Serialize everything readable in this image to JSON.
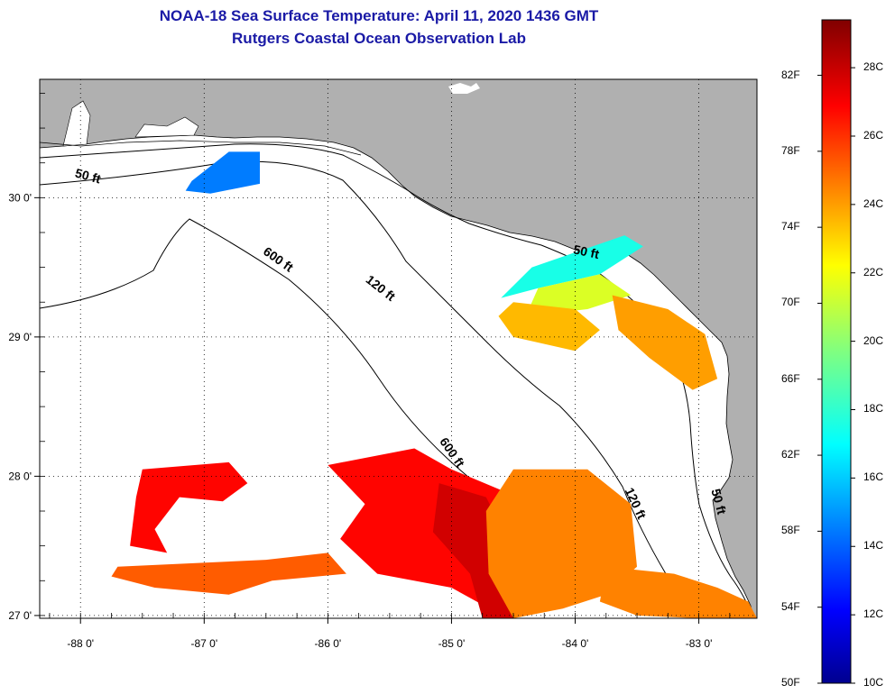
{
  "title": {
    "line1": "NOAA-18 Sea Surface Temperature:  April 11, 2020 1436 GMT",
    "line2": "Rutgers Coastal Ocean Observation Lab"
  },
  "map": {
    "lon_range": [
      -88.33,
      -82.53
    ],
    "lat_range": [
      26.98,
      30.85
    ],
    "lon_ticks": [
      {
        "value": -88,
        "label": "-88 0'"
      },
      {
        "value": -87,
        "label": "-87 0'"
      },
      {
        "value": -86,
        "label": "-86 0'"
      },
      {
        "value": -85,
        "label": "-85 0'"
      },
      {
        "value": -84,
        "label": "-84 0'"
      },
      {
        "value": -83,
        "label": "-83 0'"
      }
    ],
    "lat_ticks": [
      {
        "value": 30,
        "label": "30 0'"
      },
      {
        "value": 29,
        "label": "29 0'"
      },
      {
        "value": 28,
        "label": "28 0'"
      },
      {
        "value": 27,
        "label": "27 0'"
      }
    ],
    "contour_labels": [
      {
        "text": "50 ft",
        "lon": -88.05,
        "lat": 30.15,
        "rot": 15
      },
      {
        "text": "600 ft",
        "lon": -86.53,
        "lat": 29.6,
        "rot": 35
      },
      {
        "text": "120 ft",
        "lon": -85.7,
        "lat": 29.4,
        "rot": 38
      },
      {
        "text": "50 ft",
        "lon": -84.02,
        "lat": 29.6,
        "rot": 12
      },
      {
        "text": "600 ft",
        "lon": -85.1,
        "lat": 28.25,
        "rot": 55
      },
      {
        "text": "120 ft",
        "lon": -83.6,
        "lat": 27.9,
        "rot": 65
      },
      {
        "text": "50 ft",
        "lon": -82.9,
        "lat": 27.9,
        "rot": 75
      }
    ],
    "colors": {
      "land": "#b0b0b0",
      "water": "#ffffff",
      "grid": "#000000"
    }
  },
  "colorbar": {
    "min_c": 10,
    "max_c": 29.4,
    "celsius_labels": [
      {
        "value": 28,
        "label": "28C"
      },
      {
        "value": 26,
        "label": "26C"
      },
      {
        "value": 24,
        "label": "24C"
      },
      {
        "value": 22,
        "label": "22C"
      },
      {
        "value": 20,
        "label": "20C"
      },
      {
        "value": 18,
        "label": "18C"
      },
      {
        "value": 16,
        "label": "16C"
      },
      {
        "value": 14,
        "label": "14C"
      },
      {
        "value": 12,
        "label": "12C"
      },
      {
        "value": 10,
        "label": "10C"
      }
    ],
    "fahrenheit_labels": [
      {
        "value": 82,
        "label": "82F"
      },
      {
        "value": 78,
        "label": "78F"
      },
      {
        "value": 74,
        "label": "74F"
      },
      {
        "value": 70,
        "label": "70F"
      },
      {
        "value": 66,
        "label": "66F"
      },
      {
        "value": 62,
        "label": "62F"
      },
      {
        "value": 58,
        "label": "58F"
      },
      {
        "value": 54,
        "label": "54F"
      },
      {
        "value": 50,
        "label": "50F"
      }
    ]
  },
  "sst_patches": [
    {
      "name": "pensacola-cold-patch",
      "temp_c": 14.5,
      "pts": [
        [
          -86.8,
          30.33
        ],
        [
          -86.55,
          30.33
        ],
        [
          -86.55,
          30.1
        ],
        [
          -86.95,
          30.03
        ],
        [
          -87.15,
          30.05
        ],
        [
          -87.1,
          30.12
        ]
      ]
    },
    {
      "name": "apalachee-cyan-band",
      "temp_c": 17.5,
      "pts": [
        [
          -84.35,
          29.5
        ],
        [
          -83.6,
          29.73
        ],
        [
          -83.45,
          29.65
        ],
        [
          -83.8,
          29.45
        ],
        [
          -84.3,
          29.35
        ],
        [
          -84.6,
          29.28
        ]
      ]
    },
    {
      "name": "apalachee-yellow",
      "temp_c": 21.5,
      "pts": [
        [
          -84.3,
          29.35
        ],
        [
          -83.8,
          29.45
        ],
        [
          -83.55,
          29.3
        ],
        [
          -83.9,
          29.2
        ],
        [
          -84.4,
          29.15
        ]
      ]
    },
    {
      "name": "big-bend-orange-west",
      "temp_c": 23.5,
      "pts": [
        [
          -84.5,
          29.25
        ],
        [
          -84.0,
          29.2
        ],
        [
          -83.8,
          29.05
        ],
        [
          -84.0,
          28.9
        ],
        [
          -84.5,
          29.0
        ],
        [
          -84.62,
          29.15
        ]
      ]
    },
    {
      "name": "big-bend-orange-east",
      "temp_c": 24.0,
      "pts": [
        [
          -83.7,
          29.3
        ],
        [
          -83.25,
          29.2
        ],
        [
          -82.95,
          29.02
        ],
        [
          -82.85,
          28.7
        ],
        [
          -83.05,
          28.62
        ],
        [
          -83.4,
          28.85
        ],
        [
          -83.65,
          29.05
        ]
      ]
    },
    {
      "name": "northwest-red-blob",
      "temp_c": 26.8,
      "pts": [
        [
          -87.5,
          28.05
        ],
        [
          -86.8,
          28.1
        ],
        [
          -86.65,
          27.95
        ],
        [
          -86.85,
          27.82
        ],
        [
          -87.2,
          27.85
        ],
        [
          -87.4,
          27.62
        ],
        [
          -87.3,
          27.45
        ],
        [
          -87.6,
          27.5
        ],
        [
          -87.55,
          27.85
        ]
      ]
    },
    {
      "name": "southwest-orange-band",
      "temp_c": 25.2,
      "pts": [
        [
          -87.7,
          27.35
        ],
        [
          -86.5,
          27.4
        ],
        [
          -86.0,
          27.45
        ],
        [
          -85.85,
          27.3
        ],
        [
          -86.45,
          27.25
        ],
        [
          -86.8,
          27.15
        ],
        [
          -87.4,
          27.2
        ],
        [
          -87.75,
          27.28
        ]
      ]
    },
    {
      "name": "central-red-band",
      "temp_c": 26.8,
      "pts": [
        [
          -86.0,
          28.08
        ],
        [
          -85.3,
          28.2
        ],
        [
          -85.0,
          28.05
        ],
        [
          -84.6,
          27.9
        ],
        [
          -84.55,
          27.6
        ],
        [
          -84.8,
          27.4
        ],
        [
          -84.7,
          27.1
        ],
        [
          -84.55,
          26.98
        ],
        [
          -85.0,
          27.2
        ],
        [
          -85.6,
          27.3
        ],
        [
          -85.9,
          27.55
        ],
        [
          -85.7,
          27.8
        ]
      ]
    },
    {
      "name": "dark-red-wedge",
      "temp_c": 27.8,
      "pts": [
        [
          -85.1,
          27.95
        ],
        [
          -84.72,
          27.85
        ],
        [
          -84.55,
          27.55
        ],
        [
          -84.5,
          26.98
        ],
        [
          -84.75,
          26.98
        ],
        [
          -84.85,
          27.3
        ],
        [
          -85.15,
          27.6
        ]
      ]
    },
    {
      "name": "southeast-orange-mass",
      "temp_c": 24.5,
      "pts": [
        [
          -84.5,
          28.05
        ],
        [
          -83.9,
          28.05
        ],
        [
          -83.55,
          27.8
        ],
        [
          -83.5,
          27.35
        ],
        [
          -83.75,
          27.15
        ],
        [
          -84.1,
          27.05
        ],
        [
          -84.5,
          26.98
        ],
        [
          -84.7,
          27.3
        ],
        [
          -84.72,
          27.75
        ]
      ]
    },
    {
      "name": "southeast-corner-orange",
      "temp_c": 24.5,
      "pts": [
        [
          -83.75,
          27.35
        ],
        [
          -83.2,
          27.3
        ],
        [
          -82.85,
          27.2
        ],
        [
          -82.6,
          27.1
        ],
        [
          -82.53,
          26.98
        ],
        [
          -83.0,
          26.98
        ],
        [
          -83.5,
          27.0
        ],
        [
          -83.8,
          27.1
        ]
      ]
    }
  ]
}
